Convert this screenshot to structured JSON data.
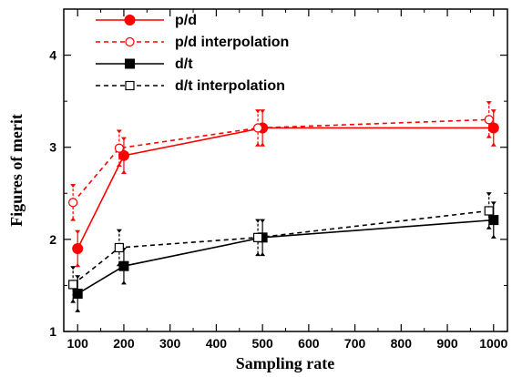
{
  "chart_data": {
    "type": "line",
    "title": "",
    "xlabel": "Sampling rate",
    "ylabel": "Figures of merit",
    "xlim": [
      70,
      1030
    ],
    "ylim": [
      1,
      4.5
    ],
    "xticks": [
      100,
      200,
      300,
      400,
      500,
      600,
      700,
      800,
      900,
      1000
    ],
    "xtick_labels": [
      "100",
      "200",
      "300",
      "400",
      "500",
      "600",
      "700",
      "800",
      "900",
      "1000"
    ],
    "yticks": [
      1,
      2,
      3,
      4
    ],
    "ytick_labels": [
      "1",
      "2",
      "3",
      "4"
    ],
    "grid": false,
    "legend_position": "top-left",
    "series": [
      {
        "name": "p/d",
        "color": "#ff0000",
        "line": "solid",
        "marker": "filled-circle",
        "x": [
          100,
          200,
          500,
          1000
        ],
        "y": [
          1.9,
          2.91,
          3.21,
          3.21
        ],
        "err": [
          0.2,
          0.2,
          0.2,
          0.2
        ]
      },
      {
        "name": "p/d interpolation",
        "color": "#ff0000",
        "line": "dashed",
        "marker": "open-circle",
        "x": [
          90,
          190,
          490,
          990
        ],
        "y": [
          2.4,
          2.99,
          3.21,
          3.3
        ],
        "err": [
          0.2,
          0.2,
          0.2,
          0.2
        ]
      },
      {
        "name": "d/t",
        "color": "#000000",
        "line": "solid",
        "marker": "filled-square",
        "x": [
          100,
          200,
          500,
          1000
        ],
        "y": [
          1.41,
          1.71,
          2.02,
          2.21
        ],
        "err": [
          0.2,
          0.2,
          0.2,
          0.2
        ]
      },
      {
        "name": "d/t interpolation",
        "color": "#000000",
        "line": "dashed",
        "marker": "open-square",
        "x": [
          90,
          190,
          490,
          990
        ],
        "y": [
          1.51,
          1.91,
          2.02,
          2.31
        ],
        "err": [
          0.2,
          0.2,
          0.2,
          0.2
        ]
      }
    ]
  }
}
